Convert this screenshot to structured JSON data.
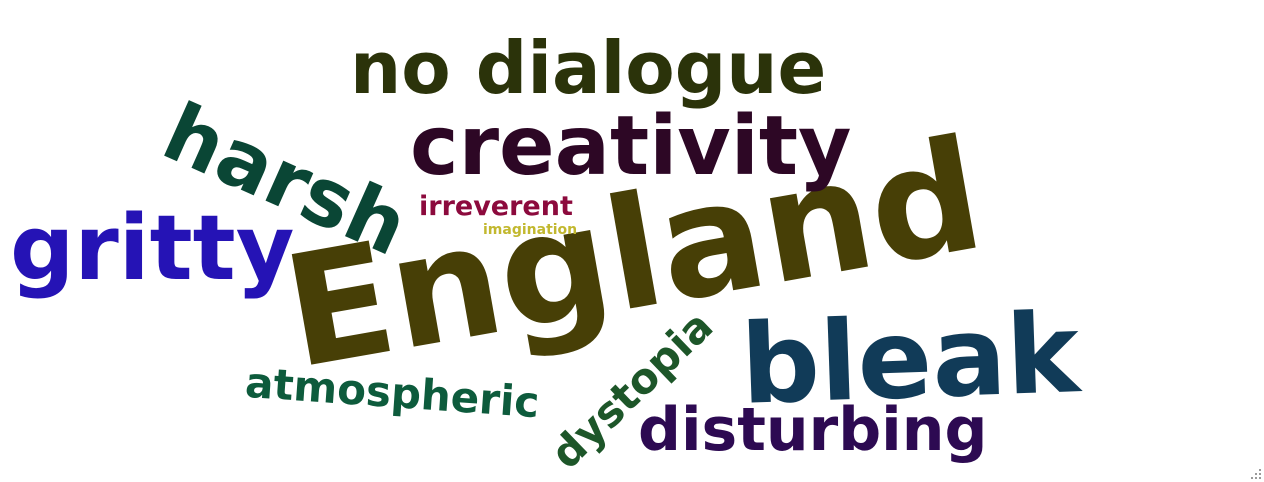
{
  "words": {
    "england": {
      "text": "England",
      "color": "#473f06"
    },
    "bleak": {
      "text": "bleak",
      "color": "#113b58"
    },
    "no_dialogue": {
      "text": "no dialogue",
      "color": "#2b330a"
    },
    "creativity": {
      "text": "creativity",
      "color": "#2d0725"
    },
    "gritty": {
      "text": "gritty",
      "color": "#2513b5"
    },
    "harsh": {
      "text": "harsh",
      "color": "#0a4635"
    },
    "disturbing": {
      "text": "disturbing",
      "color": "#2d0a52"
    },
    "atmospheric": {
      "text": "atmospheric",
      "color": "#0d5b3c"
    },
    "dystopia": {
      "text": "dystopia",
      "color": "#1d5629"
    },
    "irreverent": {
      "text": "irreverent",
      "color": "#8c0a3d"
    },
    "imagination": {
      "text": "imagination",
      "color": "#c2b82f"
    }
  },
  "resize_grip_icon": "resize-grip-icon"
}
